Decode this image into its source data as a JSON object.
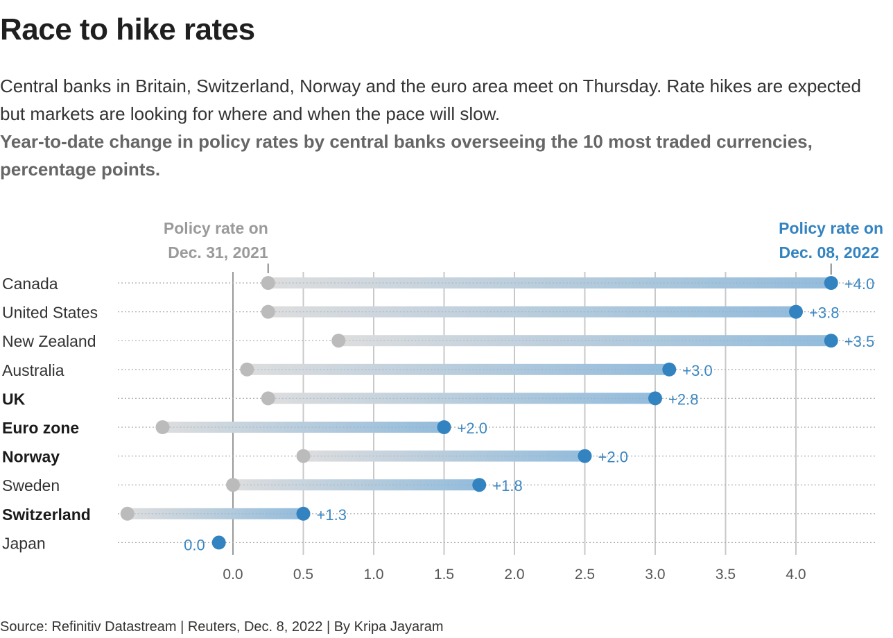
{
  "header": {
    "title": "Race to hike rates",
    "subtitle": "Central banks in Britain, Switzerland, Norway and the euro area meet on Thursday. Rate hikes are expected but markets are looking for where and when the pace will slow.",
    "description": "Year-to-date change in policy rates by central banks overseeing the 10 most traded currencies, percentage points."
  },
  "footer": {
    "source": "Source: Refinitiv Datastream | Reuters, Dec. 8, 2022 | By Kripa Jayaram"
  },
  "colors": {
    "start": "#bbbbbb",
    "end": "#3383c0",
    "grid": "#c8c8c8",
    "zero_line": "#999999"
  },
  "chart_data": {
    "type": "dumbbell",
    "title": "Race to hike rates",
    "xlabel": "",
    "ylabel": "",
    "xlim": [
      -0.8,
      4.4
    ],
    "x_ticks": [
      "0.0",
      "0.5",
      "1.0",
      "1.5",
      "2.0",
      "2.5",
      "3.0",
      "3.5",
      "4.0"
    ],
    "x_tick_values": [
      0,
      0.5,
      1.0,
      1.5,
      2.0,
      2.5,
      3.0,
      3.5,
      4.0
    ],
    "grid": true,
    "legend": {
      "start_label_line1": "Policy rate on",
      "start_label_line2": "Dec. 31, 2021",
      "end_label_line1": "Policy rate on",
      "end_label_line2": "Dec. 08, 2022"
    },
    "series": [
      {
        "name": "Policy rate on Dec. 31, 2021",
        "values": [
          0.25,
          0.25,
          0.75,
          0.1,
          0.25,
          -0.5,
          0.5,
          0.0,
          -0.75,
          -0.1
        ]
      },
      {
        "name": "Policy rate on Dec. 08, 2022",
        "values": [
          4.25,
          4.0,
          4.25,
          3.1,
          3.0,
          1.5,
          2.5,
          1.75,
          0.5,
          -0.1
        ]
      }
    ],
    "categories": [
      "Canada",
      "United States",
      "New Zealand",
      "Australia",
      "UK",
      "Euro zone",
      "Norway",
      "Sweden",
      "Switzerland",
      "Japan"
    ],
    "bold": [
      false,
      false,
      false,
      false,
      true,
      true,
      true,
      false,
      true,
      false
    ],
    "change_labels": [
      "+4.0",
      "+3.8",
      "+3.5",
      "+3.0",
      "+2.8",
      "+2.0",
      "+2.0",
      "+1.8",
      "+1.3",
      "0.0"
    ]
  }
}
